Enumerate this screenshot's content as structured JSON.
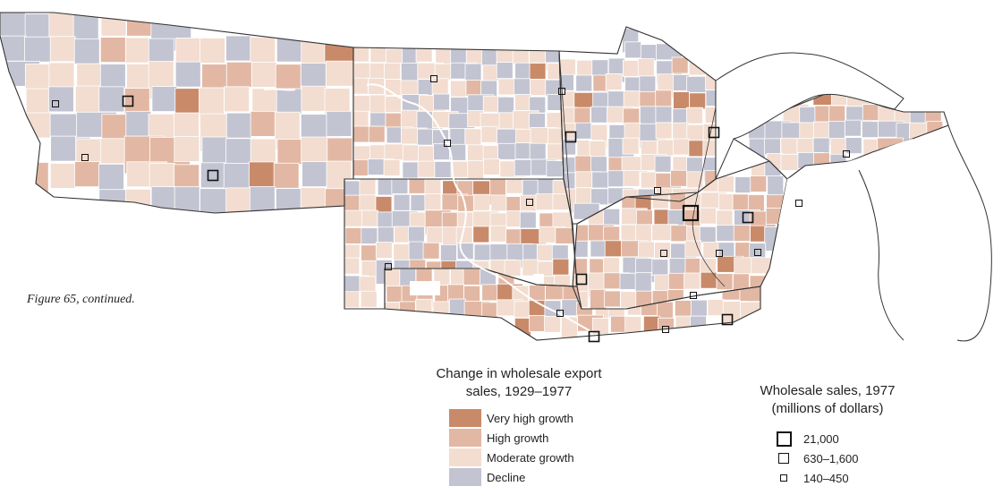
{
  "caption": "Figure 65, continued.",
  "growth_legend": {
    "title_line1": "Change in wholesale export",
    "title_line2": "sales, 1929–1977",
    "items": [
      {
        "label": "Very high growth",
        "color": "#c98a6a"
      },
      {
        "label": "High growth",
        "color": "#e2b8a4"
      },
      {
        "label": "Moderate growth",
        "color": "#f2ddd0"
      },
      {
        "label": "Decline",
        "color": "#c3c4d2"
      }
    ]
  },
  "sales_legend": {
    "title_line1": "Wholesale sales, 1977",
    "title_line2": "(millions of dollars)",
    "items": [
      {
        "label": "21,000",
        "size": "large"
      },
      {
        "label": "630–1,600",
        "size": "medium"
      },
      {
        "label": "140–450",
        "size": "small"
      }
    ]
  },
  "colors": {
    "water": "#ffffff",
    "state_border": "#333333",
    "county_border": "#ffffff",
    "river": "#ffffff"
  }
}
